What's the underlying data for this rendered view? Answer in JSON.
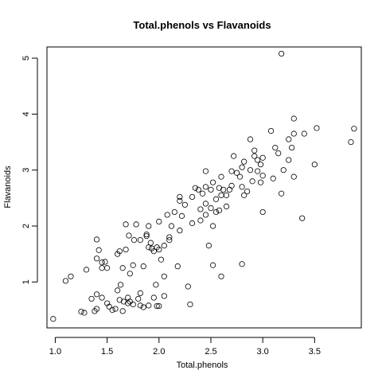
{
  "chart_data": {
    "type": "scatter",
    "title": "Total.phenols vs Flavanoids",
    "xlabel": "Total.phenols",
    "ylabel": "Flavanoids",
    "xlim": [
      0.92,
      3.95
    ],
    "ylim": [
      0.18,
      5.2
    ],
    "xticks": [
      1.0,
      1.5,
      2.0,
      2.5,
      3.0,
      3.5
    ],
    "xtick_labels": [
      "1.0",
      "1.5",
      "2.0",
      "2.5",
      "3.0",
      "3.5"
    ],
    "yticks": [
      1,
      2,
      3,
      4,
      5
    ],
    "ytick_labels": [
      "1",
      "2",
      "3",
      "4",
      "5"
    ],
    "grid": false,
    "box": true,
    "marker": "open-circle",
    "points": [
      [
        0.98,
        0.34
      ],
      [
        1.1,
        1.02
      ],
      [
        1.15,
        1.1
      ],
      [
        1.25,
        0.47
      ],
      [
        1.28,
        0.45
      ],
      [
        1.3,
        1.22
      ],
      [
        1.35,
        0.7
      ],
      [
        1.38,
        0.48
      ],
      [
        1.4,
        0.52
      ],
      [
        1.4,
        1.76
      ],
      [
        1.4,
        1.42
      ],
      [
        1.4,
        0.78
      ],
      [
        1.42,
        1.57
      ],
      [
        1.45,
        0.72
      ],
      [
        1.45,
        1.35
      ],
      [
        1.45,
        1.25
      ],
      [
        1.48,
        1.36
      ],
      [
        1.5,
        0.62
      ],
      [
        1.5,
        1.25
      ],
      [
        1.52,
        0.56
      ],
      [
        1.55,
        0.5
      ],
      [
        1.58,
        0.52
      ],
      [
        1.6,
        0.85
      ],
      [
        1.6,
        1.5
      ],
      [
        1.62,
        0.68
      ],
      [
        1.62,
        1.55
      ],
      [
        1.63,
        0.95
      ],
      [
        1.65,
        0.48
      ],
      [
        1.65,
        1.25
      ],
      [
        1.66,
        0.65
      ],
      [
        1.68,
        2.03
      ],
      [
        1.68,
        1.58
      ],
      [
        1.7,
        0.62
      ],
      [
        1.7,
        0.72
      ],
      [
        1.71,
        1.83
      ],
      [
        1.72,
        1.15
      ],
      [
        1.72,
        0.65
      ],
      [
        1.75,
        0.6
      ],
      [
        1.75,
        1.3
      ],
      [
        1.76,
        1.75
      ],
      [
        1.78,
        2.03
      ],
      [
        1.8,
        0.7
      ],
      [
        1.82,
        0.58
      ],
      [
        1.82,
        0.8
      ],
      [
        1.82,
        1.75
      ],
      [
        1.85,
        0.55
      ],
      [
        1.85,
        1.28
      ],
      [
        1.88,
        1.85
      ],
      [
        1.88,
        1.82
      ],
      [
        1.9,
        0.58
      ],
      [
        1.9,
        1.62
      ],
      [
        1.9,
        2.0
      ],
      [
        1.92,
        1.7
      ],
      [
        1.93,
        1.6
      ],
      [
        1.95,
        0.72
      ],
      [
        1.95,
        1.55
      ],
      [
        1.97,
        0.95
      ],
      [
        1.98,
        0.57
      ],
      [
        1.98,
        1.62
      ],
      [
        2.0,
        0.57
      ],
      [
        2.0,
        1.58
      ],
      [
        2.0,
        2.08
      ],
      [
        2.02,
        1.4
      ],
      [
        2.05,
        1.1
      ],
      [
        2.05,
        0.75
      ],
      [
        2.05,
        1.65
      ],
      [
        2.08,
        2.2
      ],
      [
        2.1,
        1.8
      ],
      [
        2.1,
        1.75
      ],
      [
        2.12,
        2.0
      ],
      [
        2.15,
        2.25
      ],
      [
        2.18,
        1.28
      ],
      [
        2.2,
        1.92
      ],
      [
        2.2,
        2.45
      ],
      [
        2.2,
        2.52
      ],
      [
        2.22,
        2.18
      ],
      [
        2.25,
        2.38
      ],
      [
        2.28,
        0.92
      ],
      [
        2.3,
        0.6
      ],
      [
        2.32,
        2.05
      ],
      [
        2.32,
        2.52
      ],
      [
        2.35,
        2.68
      ],
      [
        2.38,
        2.65
      ],
      [
        2.4,
        2.3
      ],
      [
        2.4,
        2.1
      ],
      [
        2.42,
        2.58
      ],
      [
        2.45,
        2.7
      ],
      [
        2.45,
        2.98
      ],
      [
        2.45,
        2.4
      ],
      [
        2.45,
        2.2
      ],
      [
        2.48,
        1.65
      ],
      [
        2.5,
        2.32
      ],
      [
        2.5,
        2.65
      ],
      [
        2.52,
        1.3
      ],
      [
        2.52,
        2.78
      ],
      [
        2.52,
        2.0
      ],
      [
        2.55,
        2.48
      ],
      [
        2.55,
        2.25
      ],
      [
        2.58,
        2.28
      ],
      [
        2.58,
        2.68
      ],
      [
        2.6,
        1.1
      ],
      [
        2.6,
        2.55
      ],
      [
        2.6,
        2.88
      ],
      [
        2.62,
        2.65
      ],
      [
        2.65,
        2.55
      ],
      [
        2.65,
        2.35
      ],
      [
        2.68,
        2.65
      ],
      [
        2.7,
        2.72
      ],
      [
        2.7,
        2.98
      ],
      [
        2.72,
        3.25
      ],
      [
        2.75,
        2.95
      ],
      [
        2.78,
        2.88
      ],
      [
        2.8,
        2.7
      ],
      [
        2.8,
        1.32
      ],
      [
        2.8,
        3.05
      ],
      [
        2.82,
        3.15
      ],
      [
        2.82,
        2.55
      ],
      [
        2.85,
        2.62
      ],
      [
        2.88,
        3.55
      ],
      [
        2.88,
        3.0
      ],
      [
        2.9,
        2.8
      ],
      [
        2.92,
        3.35
      ],
      [
        2.92,
        3.25
      ],
      [
        2.95,
        3.18
      ],
      [
        2.95,
        2.98
      ],
      [
        2.98,
        3.1
      ],
      [
        2.98,
        2.78
      ],
      [
        3.0,
        2.9
      ],
      [
        3.0,
        3.22
      ],
      [
        3.0,
        2.25
      ],
      [
        3.08,
        3.7
      ],
      [
        3.1,
        2.85
      ],
      [
        3.12,
        3.4
      ],
      [
        3.15,
        3.3
      ],
      [
        3.18,
        5.08
      ],
      [
        3.18,
        2.58
      ],
      [
        3.2,
        3.0
      ],
      [
        3.25,
        3.18
      ],
      [
        3.25,
        3.55
      ],
      [
        3.28,
        3.4
      ],
      [
        3.3,
        3.92
      ],
      [
        3.3,
        3.65
      ],
      [
        3.3,
        2.88
      ],
      [
        3.38,
        2.14
      ],
      [
        3.4,
        3.65
      ],
      [
        3.5,
        3.1
      ],
      [
        3.52,
        3.75
      ],
      [
        3.85,
        3.5
      ],
      [
        3.88,
        3.74
      ]
    ]
  }
}
